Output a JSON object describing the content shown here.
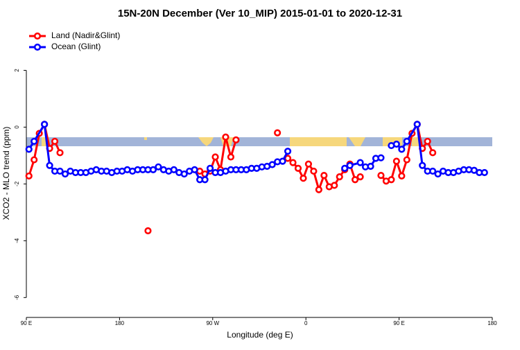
{
  "chart_data": {
    "type": "line",
    "title": "15N-20N December (Ver 10_MIP)   2015-01-01 to 2020-12-31",
    "x_label": "Longitude (deg E)",
    "y_label": "XCO2 - MLO trend (ppm)",
    "xlim": [
      90,
      540
    ],
    "xticks": [
      {
        "value": 90,
        "label": "90 E"
      },
      {
        "value": 180,
        "label": "180"
      },
      {
        "value": 270,
        "label": "90 W"
      },
      {
        "value": 360,
        "label": "0"
      },
      {
        "value": 450,
        "label": "90 E"
      },
      {
        "value": 540,
        "label": "180"
      }
    ],
    "ylim": [
      -6.7,
      3.5
    ],
    "yticks": [
      -6,
      -4,
      -2,
      0,
      2
    ],
    "legend": "topleft",
    "series": [
      {
        "name": "Land (Nadir&Glint)",
        "color": "#ff0000",
        "x": [
          92.5,
          97.5,
          102.5,
          107.5,
          112.5,
          117.5,
          122.5,
          127.5,
          207.5,
          212.5,
          257.5,
          262.5,
          267.5,
          272.5,
          277.5,
          282.5,
          287.5,
          292.5,
          297.5,
          332.5,
          337.5,
          342.5,
          347.5,
          352.5,
          357.5,
          362.5,
          367.5,
          372.5,
          377.5,
          382.5,
          387.5,
          392.5,
          397.5,
          402.5,
          407.5,
          412.5,
          417.5,
          432.5,
          437.5,
          442.5,
          447.5,
          452.5,
          457.5,
          462.5,
          467.5,
          472.5,
          477.5,
          482.5
        ],
        "values": [
          -1.72,
          -1.15,
          -0.22,
          0.1,
          -0.75,
          -0.5,
          -0.9,
          null,
          -3.65,
          null,
          -1.55,
          -1.65,
          -1.55,
          -1.05,
          -1.5,
          -0.35,
          -1.05,
          -0.45,
          null,
          -0.2,
          null,
          -1.1,
          -1.25,
          -1.45,
          -1.8,
          -1.3,
          -1.55,
          -2.2,
          -1.7,
          -2.1,
          -2.05,
          -1.75,
          -1.5,
          -1.3,
          -1.85,
          -1.75,
          null,
          -1.7,
          -1.9,
          -1.85,
          -1.2,
          -1.72,
          -1.15,
          -0.22,
          0.1,
          -0.75,
          -0.5,
          -0.9
        ]
      },
      {
        "name": "Ocean (Glint)",
        "color": "#0000ff",
        "x": [
          92.5,
          97.5,
          107.5,
          112.5,
          117.5,
          122.5,
          127.5,
          132.5,
          137.5,
          142.5,
          147.5,
          152.5,
          157.5,
          162.5,
          167.5,
          172.5,
          177.5,
          182.5,
          187.5,
          192.5,
          197.5,
          202.5,
          207.5,
          212.5,
          217.5,
          222.5,
          227.5,
          232.5,
          237.5,
          242.5,
          247.5,
          252.5,
          257.5,
          262.5,
          267.5,
          272.5,
          277.5,
          282.5,
          287.5,
          292.5,
          297.5,
          302.5,
          307.5,
          312.5,
          317.5,
          322.5,
          327.5,
          332.5,
          337.5,
          342.5,
          347.5,
          397.5,
          402.5,
          412.5,
          417.5,
          422.5,
          427.5,
          432.5,
          437.5,
          442.5,
          447.5,
          452.5,
          457.5,
          467.5,
          472.5,
          477.5,
          482.5,
          487.5,
          492.5,
          497.5,
          502.5,
          507.5,
          512.5,
          517.5,
          522.5,
          527.5,
          532.5
        ],
        "values": [
          -0.78,
          -0.5,
          0.1,
          -1.35,
          -1.55,
          -1.55,
          -1.65,
          -1.55,
          -1.6,
          -1.6,
          -1.6,
          -1.55,
          -1.5,
          -1.55,
          -1.55,
          -1.6,
          -1.55,
          -1.55,
          -1.5,
          -1.55,
          -1.5,
          -1.5,
          -1.5,
          -1.5,
          -1.4,
          -1.5,
          -1.55,
          -1.5,
          -1.6,
          -1.65,
          -1.55,
          -1.5,
          -1.85,
          -1.85,
          -1.45,
          -1.6,
          -1.6,
          -1.55,
          -1.5,
          -1.5,
          -1.5,
          -1.5,
          -1.45,
          -1.45,
          -1.4,
          -1.38,
          -1.32,
          -1.22,
          -1.2,
          -0.85,
          null,
          -1.45,
          -1.35,
          -1.25,
          -1.4,
          -1.38,
          -1.1,
          -1.08,
          null,
          -0.65,
          -0.6,
          -0.78,
          -0.5,
          0.1,
          -1.35,
          -1.55,
          -1.55,
          -1.65,
          -1.55,
          -1.6,
          -1.6,
          -1.55,
          -1.5,
          -1.5,
          -1.52,
          -1.6,
          -1.6
        ]
      }
    ]
  }
}
